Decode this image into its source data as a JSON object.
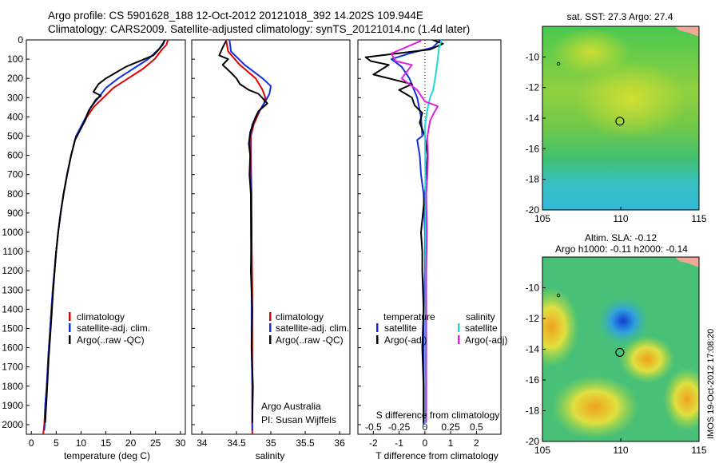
{
  "header": {
    "line1": "Argo profile: CS 5901628_188 12-Oct-2012 20121018_392 14.202S 109.944E",
    "line2": "Climatology: CARS2009. Satellite-adjusted climatology: synTS_20121014.nc (1.4d later)"
  },
  "side_stamp": "IMOS 19-Oct-2012 17:08:20",
  "colors": {
    "climatology": "#e00000",
    "satellite": "#1030e0",
    "argo": "#000000",
    "salinity_sat": "#20d8d8",
    "salinity_argo": "#e020e0"
  },
  "chart_data": [
    {
      "type": "line",
      "id": "temperature",
      "xlabel": "temperature (deg C)",
      "xlim": [
        -1,
        31
      ],
      "xticks": [
        0,
        5,
        10,
        15,
        20,
        25,
        30
      ],
      "ylim": [
        2050,
        0
      ],
      "yticks": [
        0,
        100,
        200,
        300,
        400,
        500,
        600,
        700,
        800,
        900,
        1000,
        1100,
        1200,
        1300,
        1400,
        1500,
        1600,
        1700,
        1800,
        1900,
        2000
      ],
      "legend": [
        "climatology",
        "satellite-adj. clim.",
        "Argo(..raw -QC)"
      ],
      "series": [
        {
          "name": "climatology",
          "color": "#e00000",
          "x": [
            27.5,
            27.2,
            26.3,
            24.8,
            22.5,
            19.5,
            16.5,
            14.5,
            12.5,
            11.2,
            10.2,
            9.0,
            8.0,
            7.2,
            6.5,
            5.9,
            5.4,
            5.0,
            4.3,
            3.8,
            3.4,
            3.1,
            2.8,
            2.6,
            2.4
          ],
          "y": [
            0,
            25,
            50,
            100,
            150,
            200,
            250,
            300,
            350,
            400,
            450,
            500,
            600,
            700,
            800,
            900,
            1000,
            1100,
            1300,
            1500,
            1650,
            1800,
            1900,
            2000,
            2050
          ]
        },
        {
          "name": "satellite-adj. clim.",
          "color": "#1030e0",
          "x": [
            26.8,
            26.5,
            25.6,
            23.5,
            20.5,
            17.5,
            15.0,
            13.5,
            12.0,
            11.0,
            10.0,
            9.0,
            8.0,
            7.2,
            6.5,
            5.9,
            5.4,
            5.0,
            4.3,
            3.8,
            3.4,
            3.1,
            2.8,
            2.7,
            2.6
          ],
          "y": [
            0,
            25,
            50,
            100,
            150,
            200,
            250,
            300,
            350,
            400,
            450,
            500,
            600,
            700,
            800,
            900,
            1000,
            1100,
            1300,
            1500,
            1650,
            1800,
            1900,
            2000,
            2030
          ]
        },
        {
          "name": "Argo(..raw -QC)",
          "color": "#000000",
          "x": [
            26.9,
            26.6,
            25.8,
            24.6,
            19.0,
            15.0,
            13.5,
            12.5,
            14.0,
            13.0,
            11.5,
            10.8,
            10.0,
            8.8,
            8.0,
            7.2,
            6.5,
            5.9,
            5.4,
            5.0,
            4.4,
            3.9,
            3.5,
            3.1,
            2.8
          ],
          "y": [
            0,
            15,
            45,
            80,
            140,
            200,
            230,
            270,
            290,
            310,
            370,
            420,
            460,
            520,
            600,
            700,
            800,
            900,
            1000,
            1100,
            1300,
            1500,
            1650,
            1850,
            1990
          ]
        }
      ]
    },
    {
      "type": "line",
      "id": "salinity",
      "xlabel": "salinity",
      "xlim": [
        33.85,
        36.15
      ],
      "xticks": [
        34,
        34.5,
        35,
        35.5,
        36
      ],
      "ylim": [
        2050,
        0
      ],
      "legend": [
        "climatology",
        "satellite-adj. clim.",
        "Argo(..raw -QC)"
      ],
      "annotation": [
        "Argo Australia",
        "PI: Susan Wijffels"
      ],
      "series": [
        {
          "name": "climatology",
          "color": "#e00000",
          "x": [
            34.35,
            34.38,
            34.55,
            34.78,
            34.88,
            34.92,
            34.9,
            34.85,
            34.8,
            34.75,
            34.71,
            34.71,
            34.72,
            34.72,
            34.73,
            34.73,
            34.73,
            34.73,
            34.73
          ],
          "y": [
            0,
            60,
            130,
            200,
            260,
            300,
            330,
            360,
            400,
            440,
            500,
            600,
            800,
            1000,
            1300,
            1600,
            1800,
            2000,
            2050
          ]
        },
        {
          "name": "satellite-adj. clim.",
          "color": "#1030e0",
          "x": [
            34.4,
            34.42,
            34.62,
            34.88,
            35.0,
            34.98,
            34.92,
            34.85,
            34.78,
            34.73,
            34.7,
            34.7,
            34.71,
            34.71,
            34.72,
            34.72,
            34.73,
            34.73,
            34.73
          ],
          "y": [
            0,
            60,
            130,
            200,
            240,
            280,
            320,
            360,
            400,
            440,
            500,
            600,
            800,
            1000,
            1300,
            1600,
            1800,
            1950,
            2030
          ]
        },
        {
          "name": "Argo(..raw -QC)",
          "color": "#000000",
          "x": [
            34.35,
            34.3,
            34.25,
            34.38,
            34.3,
            34.42,
            34.5,
            34.55,
            34.68,
            34.82,
            34.95,
            34.82,
            34.78,
            34.74,
            34.7,
            34.68,
            34.7,
            34.69,
            34.71,
            34.72,
            34.71,
            34.73,
            34.72,
            34.74,
            34.73
          ],
          "y": [
            5,
            40,
            80,
            100,
            130,
            170,
            200,
            230,
            260,
            280,
            330,
            370,
            400,
            440,
            480,
            540,
            600,
            700,
            800,
            1000,
            1200,
            1400,
            1600,
            1800,
            1990
          ]
        }
      ]
    },
    {
      "type": "line",
      "id": "difference",
      "xlabel": "T difference from climatology",
      "xlabel2": "S difference from climatology",
      "xlim": [
        -2.6,
        2.95
      ],
      "xticks": [
        -2,
        -1,
        0,
        1,
        2
      ],
      "sxticks": [
        -0.5,
        -0.25,
        0,
        0.25,
        0.5
      ],
      "sxtick_labels": [
        "-0.5",
        "-0.25",
        "0",
        "0.25",
        "0.5"
      ],
      "ylim": [
        2050,
        0
      ],
      "legend_t_title": "temperature",
      "legend_s_title": "salinity",
      "legend_t": [
        "satellite",
        "Argo(-adj)"
      ],
      "legend_s": [
        "satellite",
        "Argo(-adj)"
      ],
      "series": [
        {
          "name": "temperature satellite",
          "color": "#1030e0",
          "x": [
            0.6,
            0.3,
            -0.6,
            -1.3,
            -0.9,
            -0.6,
            -0.3,
            -0.15,
            -0.1,
            -0.3,
            -0.2,
            -0.15,
            -0.05,
            0.0,
            0.0,
            -0.05,
            -0.05,
            -0.05,
            -0.05
          ],
          "y": [
            0,
            40,
            70,
            100,
            140,
            200,
            300,
            400,
            500,
            520,
            600,
            700,
            800,
            1000,
            1200,
            1400,
            1600,
            1800,
            2000
          ]
        },
        {
          "name": "temperature Argo(-adj)",
          "color": "#000000",
          "x": [
            0.3,
            0.7,
            0.2,
            -2.3,
            -2.1,
            -1.4,
            -2.0,
            -0.5,
            -1.0,
            -0.5,
            -0.4,
            -0.1,
            -0.2,
            0.0,
            0.1,
            0.0,
            -0.15,
            -0.1,
            -0.1,
            -0.05,
            -0.1,
            -0.05,
            -0.05
          ],
          "y": [
            0,
            20,
            50,
            90,
            110,
            130,
            180,
            230,
            260,
            300,
            340,
            380,
            430,
            500,
            600,
            800,
            1000,
            1100,
            1200,
            1400,
            1600,
            1800,
            1990
          ]
        },
        {
          "name": "salinity satellite",
          "color": "#20d8d8",
          "x": [
            0.65,
            0.55,
            0.5,
            0.42,
            0.32,
            0.2,
            0.1,
            0.05,
            0.0,
            0.0,
            0.02,
            0.02,
            0.02,
            0.02,
            0.02
          ],
          "y": [
            0,
            40,
            100,
            180,
            260,
            300,
            360,
            400,
            450,
            500,
            700,
            1000,
            1400,
            1800,
            2000
          ]
        },
        {
          "name": "salinity Argo(-adj)",
          "color": "#e020e0",
          "x": [
            -0.15,
            -1.3,
            -1.15,
            -0.5,
            -0.9,
            -0.3,
            0.0,
            0.5,
            0.35,
            0.2,
            0.1,
            0.12,
            0.1,
            0.05,
            0.08,
            0.05,
            0.05,
            0.05
          ],
          "y": [
            5,
            70,
            110,
            130,
            200,
            260,
            320,
            345,
            380,
            420,
            500,
            600,
            700,
            800,
            1000,
            1200,
            1500,
            1990
          ]
        }
      ]
    },
    {
      "type": "heatmap",
      "id": "sst_map",
      "title": "sat. SST: 27.3 Argo: 27.4",
      "xlim": [
        105,
        115
      ],
      "ylim": [
        -20,
        -8
      ],
      "xticks": [
        105,
        110,
        115
      ],
      "yticks": [
        -10,
        -12,
        -14,
        -16,
        -18,
        -20
      ],
      "argo_position": [
        109.944,
        -14.202
      ]
    },
    {
      "type": "heatmap",
      "id": "sla_map",
      "title": "Altim. SLA: -0.12",
      "subtitle": "Argo h1000: -0.11 h2000: -0.14",
      "xlim": [
        105,
        115
      ],
      "ylim": [
        -20,
        -8
      ],
      "xticks": [
        105,
        110,
        115
      ],
      "yticks": [
        -10,
        -12,
        -14,
        -16,
        -18,
        -20
      ],
      "argo_position": [
        109.944,
        -14.202
      ]
    }
  ]
}
